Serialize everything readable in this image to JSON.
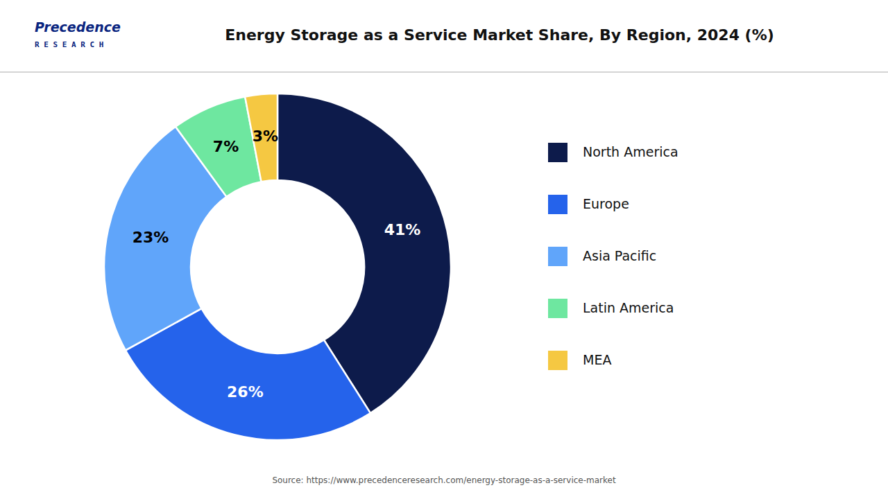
{
  "chart_data": {
    "type": "pie",
    "title": "Energy Storage as a Service Market Share, By Region, 2024 (%)",
    "annotations": [
      "Precedence",
      "R E S E A R C H",
      "Source: https://www.precedenceresearch.com/energy-storage-as-a-service-market"
    ],
    "categories": [
      "North America",
      "Europe",
      "Asia Pacific",
      "Latin America",
      "MEA"
    ],
    "values": [
      41,
      26,
      23,
      7,
      3
    ],
    "value_labels": [
      "41%",
      "26%",
      "23%",
      "7%",
      "3%"
    ],
    "colors": [
      "#0d1b4b",
      "#2563eb",
      "#60a5fa",
      "#6ee7a0",
      "#f5c842"
    ],
    "data_labels": true,
    "legend": "right"
  }
}
